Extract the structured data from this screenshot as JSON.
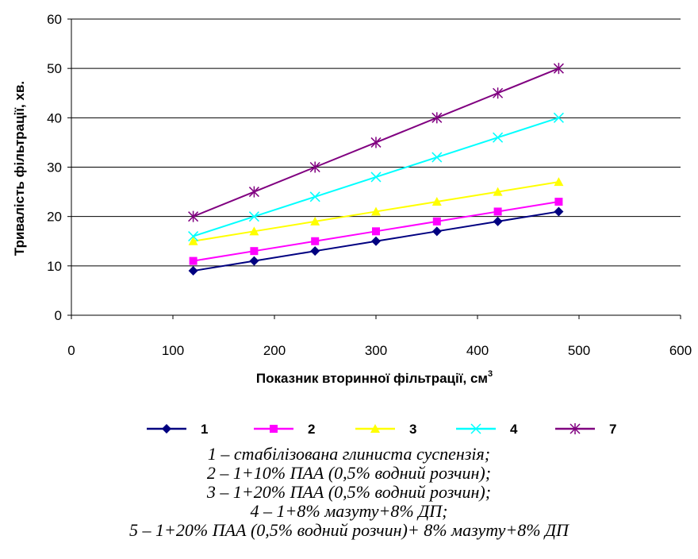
{
  "chart_data": {
    "type": "line",
    "title": "",
    "xlabel": "Показник вторинної фільтрації, см",
    "xlabel_superscript": "3",
    "ylabel": "Тривалість  фільтрації, хв.",
    "xlim": [
      0,
      600
    ],
    "ylim": [
      0,
      60
    ],
    "x_ticks": [
      "0",
      "100",
      "200",
      "300",
      "400",
      "500",
      "600"
    ],
    "y_ticks": [
      "0",
      "10",
      "20",
      "30",
      "40",
      "50",
      "60"
    ],
    "grid": "horizontal",
    "legend_position": "bottom",
    "x": [
      120,
      180,
      240,
      300,
      360,
      420,
      480
    ],
    "series": [
      {
        "name": "1",
        "color": "#000080",
        "marker": "diamond",
        "values": [
          9,
          11,
          13,
          15,
          17,
          19,
          21
        ]
      },
      {
        "name": "2",
        "color": "#ff00ff",
        "marker": "square",
        "values": [
          11,
          13,
          15,
          17,
          19,
          21,
          23
        ]
      },
      {
        "name": "3",
        "color": "#ffff00",
        "marker": "triangle",
        "values": [
          15,
          17,
          19,
          21,
          23,
          25,
          27
        ]
      },
      {
        "name": "4",
        "color": "#00ffff",
        "marker": "x",
        "values": [
          16,
          20,
          24,
          28,
          32,
          36,
          40
        ]
      },
      {
        "name": "7",
        "color": "#800080",
        "marker": "star",
        "values": [
          20,
          25,
          30,
          35,
          40,
          45,
          50
        ]
      }
    ]
  },
  "caption": {
    "lines": [
      "1 – стабілізована глиниста суспензія;",
      "2 – 1+10% ПАА (0,5% водний розчин);",
      "3 – 1+20% ПАА (0,5% водний розчин);",
      "4 – 1+8% мазуту+8% ДП;",
      "5 – 1+20% ПАА (0,5% водний розчин)+ 8% мазуту+8% ДП"
    ]
  }
}
